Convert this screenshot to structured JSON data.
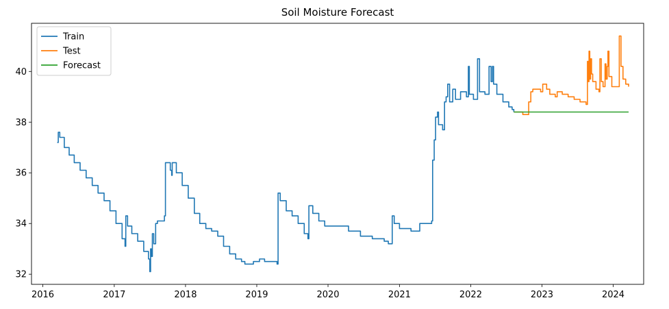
{
  "chart_data": {
    "type": "line",
    "title": "Soil Moisture Forecast",
    "xlabel": "",
    "ylabel": "",
    "xlim": [
      "2015-11-04",
      "2024-06-05"
    ],
    "ylim": [
      31.6,
      41.9
    ],
    "x_ticks": [
      "2016",
      "2017",
      "2018",
      "2019",
      "2020",
      "2021",
      "2022",
      "2023",
      "2024"
    ],
    "y_ticks": [
      32,
      34,
      36,
      38,
      40
    ],
    "grid": false,
    "legend_position": "top-left",
    "series": [
      {
        "name": "Train",
        "color": "#1f77b4",
        "points": [
          [
            "2016-03-15",
            37.2
          ],
          [
            "2016-03-20",
            37.6
          ],
          [
            "2016-03-28",
            37.4
          ],
          [
            "2016-04-20",
            37.0
          ],
          [
            "2016-05-15",
            36.7
          ],
          [
            "2016-06-10",
            36.4
          ],
          [
            "2016-07-10",
            36.1
          ],
          [
            "2016-08-10",
            35.8
          ],
          [
            "2016-09-10",
            35.5
          ],
          [
            "2016-10-10",
            35.2
          ],
          [
            "2016-11-10",
            34.9
          ],
          [
            "2016-12-10",
            34.5
          ],
          [
            "2017-01-10",
            34.0
          ],
          [
            "2017-02-10",
            33.4
          ],
          [
            "2017-02-25",
            33.1
          ],
          [
            "2017-03-01",
            34.3
          ],
          [
            "2017-03-10",
            33.9
          ],
          [
            "2017-04-01",
            33.6
          ],
          [
            "2017-05-01",
            33.3
          ],
          [
            "2017-06-01",
            32.9
          ],
          [
            "2017-06-25",
            32.6
          ],
          [
            "2017-07-02",
            32.1
          ],
          [
            "2017-07-06",
            33.0
          ],
          [
            "2017-07-10",
            32.7
          ],
          [
            "2017-07-15",
            33.6
          ],
          [
            "2017-07-22",
            33.2
          ],
          [
            "2017-08-01",
            34.0
          ],
          [
            "2017-08-10",
            34.1
          ],
          [
            "2017-09-10",
            34.1
          ],
          [
            "2017-09-15",
            34.3
          ],
          [
            "2017-09-20",
            36.4
          ],
          [
            "2017-10-01",
            36.4
          ],
          [
            "2017-10-15",
            36.1
          ],
          [
            "2017-10-22",
            35.9
          ],
          [
            "2017-10-25",
            36.4
          ],
          [
            "2017-11-15",
            36.0
          ],
          [
            "2017-12-15",
            35.5
          ],
          [
            "2018-01-15",
            35.0
          ],
          [
            "2018-02-15",
            34.4
          ],
          [
            "2018-03-15",
            34.0
          ],
          [
            "2018-04-15",
            33.8
          ],
          [
            "2018-05-15",
            33.7
          ],
          [
            "2018-06-15",
            33.5
          ],
          [
            "2018-07-15",
            33.1
          ],
          [
            "2018-08-15",
            32.8
          ],
          [
            "2018-09-15",
            32.6
          ],
          [
            "2018-10-15",
            32.5
          ],
          [
            "2018-11-01",
            32.4
          ],
          [
            "2018-12-15",
            32.5
          ],
          [
            "2019-01-15",
            32.6
          ],
          [
            "2019-02-10",
            32.5
          ],
          [
            "2019-04-15",
            32.4
          ],
          [
            "2019-04-20",
            35.2
          ],
          [
            "2019-05-01",
            34.9
          ],
          [
            "2019-06-01",
            34.5
          ],
          [
            "2019-07-01",
            34.3
          ],
          [
            "2019-08-01",
            34.0
          ],
          [
            "2019-09-01",
            33.6
          ],
          [
            "2019-09-20",
            33.4
          ],
          [
            "2019-09-25",
            34.7
          ],
          [
            "2019-10-15",
            34.4
          ],
          [
            "2019-11-15",
            34.1
          ],
          [
            "2019-12-15",
            33.9
          ],
          [
            "2020-02-15",
            33.9
          ],
          [
            "2020-04-15",
            33.7
          ],
          [
            "2020-06-15",
            33.5
          ],
          [
            "2020-08-15",
            33.4
          ],
          [
            "2020-10-15",
            33.3
          ],
          [
            "2020-11-05",
            33.2
          ],
          [
            "2020-11-20",
            33.2
          ],
          [
            "2020-11-25",
            34.3
          ],
          [
            "2020-12-05",
            34.0
          ],
          [
            "2021-01-01",
            33.8
          ],
          [
            "2021-03-01",
            33.7
          ],
          [
            "2021-04-15",
            34.0
          ],
          [
            "2021-06-15",
            34.1
          ],
          [
            "2021-06-20",
            36.5
          ],
          [
            "2021-06-28",
            37.3
          ],
          [
            "2021-07-05",
            38.2
          ],
          [
            "2021-07-15",
            38.4
          ],
          [
            "2021-07-20",
            37.9
          ],
          [
            "2021-08-10",
            37.7
          ],
          [
            "2021-08-20",
            38.8
          ],
          [
            "2021-08-28",
            39.0
          ],
          [
            "2021-09-05",
            39.5
          ],
          [
            "2021-09-15",
            38.8
          ],
          [
            "2021-10-01",
            39.3
          ],
          [
            "2021-10-15",
            38.9
          ],
          [
            "2021-11-10",
            39.2
          ],
          [
            "2021-12-10",
            39.0
          ],
          [
            "2021-12-20",
            40.2
          ],
          [
            "2021-12-25",
            39.1
          ],
          [
            "2022-01-15",
            38.9
          ],
          [
            "2022-02-05",
            40.5
          ],
          [
            "2022-02-15",
            39.2
          ],
          [
            "2022-03-15",
            39.1
          ],
          [
            "2022-04-05",
            40.2
          ],
          [
            "2022-04-15",
            39.6
          ],
          [
            "2022-04-22",
            40.2
          ],
          [
            "2022-04-28",
            39.5
          ],
          [
            "2022-05-15",
            39.1
          ],
          [
            "2022-06-15",
            38.8
          ],
          [
            "2022-07-15",
            38.6
          ],
          [
            "2022-08-01",
            38.5
          ],
          [
            "2022-08-10",
            38.4
          ]
        ]
      },
      {
        "name": "Test",
        "color": "#ff7f0e",
        "points": [
          [
            "2022-08-10",
            38.4
          ],
          [
            "2022-09-20",
            38.4
          ],
          [
            "2022-09-25",
            38.3
          ],
          [
            "2022-10-20",
            38.3
          ],
          [
            "2022-10-25",
            38.8
          ],
          [
            "2022-11-05",
            39.2
          ],
          [
            "2022-11-15",
            39.3
          ],
          [
            "2022-12-25",
            39.2
          ],
          [
            "2023-01-05",
            39.5
          ],
          [
            "2023-01-25",
            39.3
          ],
          [
            "2023-02-10",
            39.1
          ],
          [
            "2023-03-10",
            39.0
          ],
          [
            "2023-03-20",
            39.2
          ],
          [
            "2023-04-15",
            39.1
          ],
          [
            "2023-05-15",
            39.0
          ],
          [
            "2023-06-15",
            38.9
          ],
          [
            "2023-07-15",
            38.8
          ],
          [
            "2023-08-15",
            38.7
          ],
          [
            "2023-08-22",
            40.4
          ],
          [
            "2023-08-26",
            39.6
          ],
          [
            "2023-08-30",
            40.8
          ],
          [
            "2023-09-03",
            39.7
          ],
          [
            "2023-09-07",
            40.5
          ],
          [
            "2023-09-12",
            39.9
          ],
          [
            "2023-09-18",
            39.6
          ],
          [
            "2023-10-05",
            39.3
          ],
          [
            "2023-10-20",
            39.2
          ],
          [
            "2023-10-25",
            40.5
          ],
          [
            "2023-11-01",
            39.6
          ],
          [
            "2023-11-10",
            39.4
          ],
          [
            "2023-11-20",
            40.3
          ],
          [
            "2023-11-25",
            39.7
          ],
          [
            "2023-12-01",
            40.2
          ],
          [
            "2023-12-05",
            40.8
          ],
          [
            "2023-12-10",
            39.8
          ],
          [
            "2023-12-25",
            39.4
          ],
          [
            "2024-01-20",
            39.4
          ],
          [
            "2024-02-01",
            41.4
          ],
          [
            "2024-02-10",
            40.2
          ],
          [
            "2024-02-20",
            39.7
          ],
          [
            "2024-03-05",
            39.5
          ],
          [
            "2024-03-20",
            39.4
          ]
        ]
      },
      {
        "name": "Forecast",
        "color": "#2ca02c",
        "points": [
          [
            "2022-08-10",
            38.4
          ],
          [
            "2024-03-20",
            38.4
          ]
        ]
      }
    ]
  }
}
